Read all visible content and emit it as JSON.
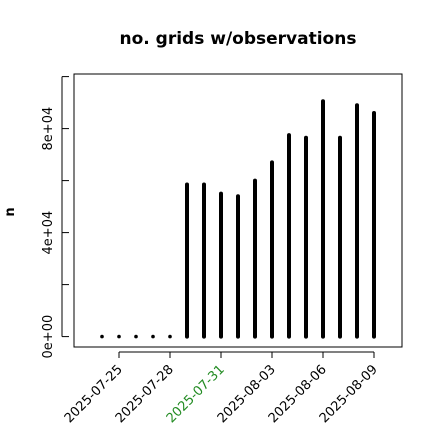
{
  "chart_data": {
    "type": "bar",
    "title": "no. grids w/observations",
    "ylabel": "n",
    "xlabel": "",
    "ylim": [
      -4000,
      101000
    ],
    "grid": false,
    "x_dates": [
      "2025-07-24",
      "2025-07-25",
      "2025-07-26",
      "2025-07-27",
      "2025-07-28",
      "2025-07-29",
      "2025-07-30",
      "2025-07-31",
      "2025-08-01",
      "2025-08-02",
      "2025-08-03",
      "2025-08-04",
      "2025-08-05",
      "2025-08-06",
      "2025-08-07",
      "2025-08-08",
      "2025-08-09"
    ],
    "values": [
      0,
      0,
      0,
      0,
      0,
      58500,
      58500,
      55000,
      54000,
      60000,
      67000,
      77500,
      76500,
      90500,
      76500,
      89000,
      86000
    ],
    "xtick_dates": [
      "2025-07-25",
      "2025-07-28",
      "2025-07-31",
      "2025-08-03",
      "2025-08-06",
      "2025-08-09"
    ],
    "xtick_labels": [
      "2025-07-25",
      "2025-07-28",
      "2025-07-31",
      "2025-08-03",
      "2025-08-06",
      "2025-08-09"
    ],
    "xtick_colors": [
      "#000000",
      "#000000",
      "#228B22",
      "#000000",
      "#000000",
      "#000000"
    ],
    "yticks": [
      0,
      40000,
      80000
    ],
    "ytick_labels": [
      "0e+00",
      "4e+04",
      "8e+04"
    ],
    "bar_color": "#000000"
  }
}
